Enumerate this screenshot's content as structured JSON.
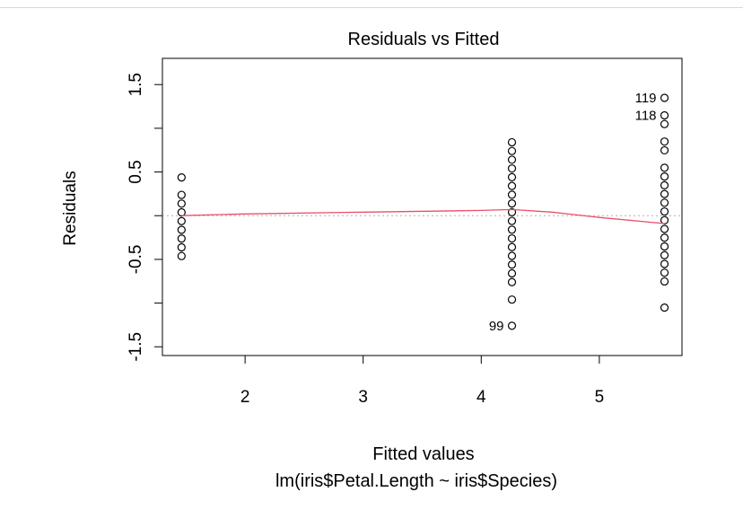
{
  "chart_data": {
    "type": "scatter",
    "title": "Residuals vs Fitted",
    "xlabel": "Fitted values",
    "subtitle": "lm(iris$Petal.Length ~ iris$Species)",
    "ylabel": "Residuals",
    "xlim": [
      1.3,
      5.7
    ],
    "ylim": [
      -1.6,
      1.8
    ],
    "xticks": [
      2,
      3,
      4,
      5
    ],
    "yticks": [
      -1.5,
      -1.0,
      -0.5,
      0.0,
      0.5,
      1.0,
      1.5
    ],
    "ytick_labels": [
      "-1.5",
      "",
      "-0.5",
      "",
      "0.5",
      "",
      "1.5"
    ],
    "grid": false,
    "reference_line": {
      "y": 0,
      "style": "dotted",
      "color": "#b0b0b0"
    },
    "points": [
      {
        "x": 1.462,
        "y": 0.438
      },
      {
        "x": 1.462,
        "y": 0.238
      },
      {
        "x": 1.462,
        "y": 0.138
      },
      {
        "x": 1.462,
        "y": 0.038
      },
      {
        "x": 1.462,
        "y": -0.062
      },
      {
        "x": 1.462,
        "y": -0.162
      },
      {
        "x": 1.462,
        "y": -0.262
      },
      {
        "x": 1.462,
        "y": -0.362
      },
      {
        "x": 1.462,
        "y": -0.462
      },
      {
        "x": 4.26,
        "y": 0.84
      },
      {
        "x": 4.26,
        "y": 0.74
      },
      {
        "x": 4.26,
        "y": 0.64
      },
      {
        "x": 4.26,
        "y": 0.54
      },
      {
        "x": 4.26,
        "y": 0.44
      },
      {
        "x": 4.26,
        "y": 0.34
      },
      {
        "x": 4.26,
        "y": 0.24
      },
      {
        "x": 4.26,
        "y": 0.14
      },
      {
        "x": 4.26,
        "y": 0.04
      },
      {
        "x": 4.26,
        "y": -0.06
      },
      {
        "x": 4.26,
        "y": -0.16
      },
      {
        "x": 4.26,
        "y": -0.26
      },
      {
        "x": 4.26,
        "y": -0.36
      },
      {
        "x": 4.26,
        "y": -0.46
      },
      {
        "x": 4.26,
        "y": -0.56
      },
      {
        "x": 4.26,
        "y": -0.66
      },
      {
        "x": 4.26,
        "y": -0.76
      },
      {
        "x": 4.26,
        "y": -0.96
      },
      {
        "x": 4.26,
        "y": -1.26
      },
      {
        "x": 5.552,
        "y": 1.348
      },
      {
        "x": 5.552,
        "y": 1.148
      },
      {
        "x": 5.552,
        "y": 1.048
      },
      {
        "x": 5.552,
        "y": 0.848
      },
      {
        "x": 5.552,
        "y": 0.748
      },
      {
        "x": 5.552,
        "y": 0.548
      },
      {
        "x": 5.552,
        "y": 0.448
      },
      {
        "x": 5.552,
        "y": 0.348
      },
      {
        "x": 5.552,
        "y": 0.248
      },
      {
        "x": 5.552,
        "y": 0.148
      },
      {
        "x": 5.552,
        "y": 0.048
      },
      {
        "x": 5.552,
        "y": -0.052
      },
      {
        "x": 5.552,
        "y": -0.152
      },
      {
        "x": 5.552,
        "y": -0.252
      },
      {
        "x": 5.552,
        "y": -0.352
      },
      {
        "x": 5.552,
        "y": -0.452
      },
      {
        "x": 5.552,
        "y": -0.552
      },
      {
        "x": 5.552,
        "y": -0.652
      },
      {
        "x": 5.552,
        "y": -0.752
      },
      {
        "x": 5.552,
        "y": -1.052
      }
    ],
    "smooth_line": {
      "color": "#e8506a",
      "points": [
        {
          "x": 1.462,
          "y": 0.0
        },
        {
          "x": 2.0,
          "y": 0.02
        },
        {
          "x": 3.0,
          "y": 0.04
        },
        {
          "x": 4.0,
          "y": 0.06
        },
        {
          "x": 4.26,
          "y": 0.07
        },
        {
          "x": 4.6,
          "y": 0.04
        },
        {
          "x": 5.0,
          "y": -0.02
        },
        {
          "x": 5.552,
          "y": -0.09
        }
      ]
    },
    "annotations": [
      {
        "text": "119",
        "x": 5.552,
        "y": 1.348
      },
      {
        "text": "118",
        "x": 5.552,
        "y": 1.148
      },
      {
        "text": "99",
        "x": 4.26,
        "y": -1.26
      }
    ]
  }
}
